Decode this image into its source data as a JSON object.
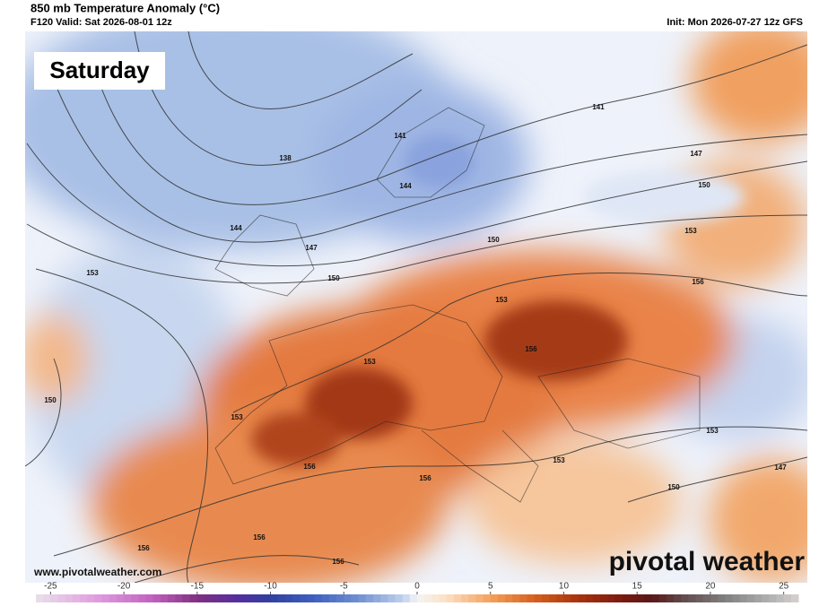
{
  "header": {
    "title": "850 mb Temperature Anomaly (°C)",
    "subtitle": "F120 Valid: Sat 2026-08-01 12z",
    "init": "Init: Mon 2026-07-27 12z GFS"
  },
  "map": {
    "day_label": "Saturday",
    "contour_labels": [
      138,
      141,
      141,
      144,
      144,
      147,
      147,
      150,
      150,
      150,
      153,
      153,
      153,
      156,
      156,
      153,
      153,
      150,
      156,
      156,
      153,
      153,
      150,
      147,
      156,
      156,
      156
    ],
    "website": "www.pivotalweather.com",
    "logo": "pivotal weather"
  },
  "colorbar": {
    "range": [
      -26,
      26
    ],
    "ticks": [
      -25,
      -20,
      -15,
      -10,
      -5,
      0,
      5,
      10,
      15,
      20,
      25
    ],
    "colors": [
      {
        "value": -26,
        "color": "#e8e0e8"
      },
      {
        "value": -22,
        "color": "#e0a0e0"
      },
      {
        "value": -18,
        "color": "#c060c0"
      },
      {
        "value": -15,
        "color": "#803080"
      },
      {
        "value": -12,
        "color": "#5030a0"
      },
      {
        "value": -10,
        "color": "#3040a0"
      },
      {
        "value": -7,
        "color": "#4060c0"
      },
      {
        "value": -4,
        "color": "#7090d0"
      },
      {
        "value": -1,
        "color": "#c0d0ec"
      },
      {
        "value": 0,
        "color": "#f4f4f4"
      },
      {
        "value": 2,
        "color": "#fbe0c4"
      },
      {
        "value": 5,
        "color": "#f5a05a"
      },
      {
        "value": 8,
        "color": "#d5601e"
      },
      {
        "value": 11,
        "color": "#a8320e"
      },
      {
        "value": 14,
        "color": "#7a1a10"
      },
      {
        "value": 16,
        "color": "#5a1818"
      },
      {
        "value": 18,
        "color": "#604848"
      },
      {
        "value": 21,
        "color": "#808080"
      },
      {
        "value": 24,
        "color": "#b0b0b0"
      },
      {
        "value": 26,
        "color": "#d8d0d0"
      }
    ]
  }
}
